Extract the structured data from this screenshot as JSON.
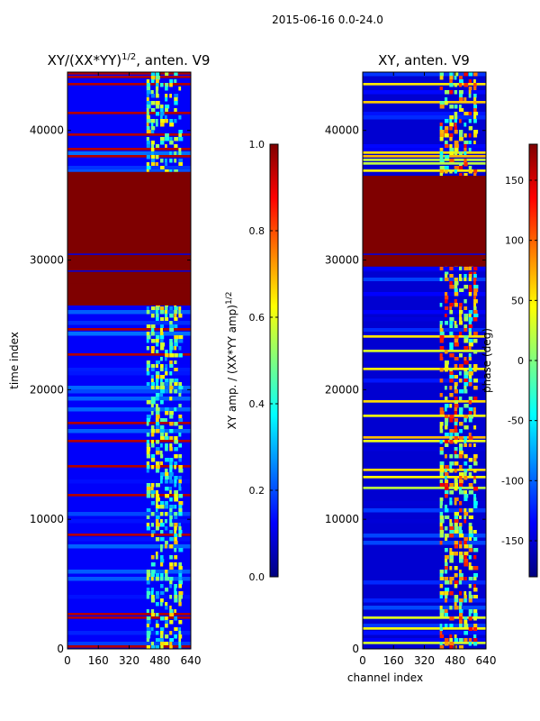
{
  "suptitle": "2015-06-16 0.0-24.0",
  "chart_data": [
    {
      "type": "heatmap",
      "title_main": "XY/(XX*YY)",
      "title_sup": "1/2",
      "title_suffix": ", anten. V9",
      "ylabel": "time index",
      "xlabel": "",
      "xlim": [
        0,
        640
      ],
      "ylim": [
        0,
        44500
      ],
      "xticks": [
        0,
        160,
        320,
        480,
        640
      ],
      "yticks": [
        0,
        10000,
        20000,
        30000,
        40000
      ],
      "colorbar": {
        "label_main": "XY amp. / (XX*YY amp)",
        "label_sup": "1/2",
        "range": [
          0.0,
          1.0
        ],
        "ticks": [
          "0.0",
          "0.2",
          "0.4",
          "0.6",
          "0.8",
          "1.0"
        ],
        "colormap": "jet"
      },
      "features": {
        "saturated_time_ranges": [
          [
            26500,
            36800
          ],
          [
            27400,
            28200
          ]
        ],
        "bright_channel_band": [
          410,
          600
        ],
        "background_level": 0.1
      }
    },
    {
      "type": "heatmap",
      "title_main": "XY, anten. V9",
      "ylabel": "",
      "xlabel": "channel index",
      "xlim": [
        0,
        640
      ],
      "ylim": [
        0,
        44500
      ],
      "xticks": [
        0,
        160,
        320,
        480,
        640
      ],
      "yticks": [
        0,
        10000,
        20000,
        30000,
        40000
      ],
      "colorbar": {
        "label_main": "phase (deg)",
        "range": [
          -180,
          180
        ],
        "ticks": [
          "-150",
          "-100",
          "-50",
          "0",
          "50",
          "100",
          "150"
        ],
        "colormap": "jet"
      },
      "features": {
        "saturated_time_ranges": [
          [
            29500,
            36500
          ]
        ],
        "bright_channel_band": [
          400,
          600
        ],
        "background_level": -150
      }
    }
  ],
  "colors": {
    "jet": [
      "#00007f",
      "#0000ff",
      "#007fff",
      "#00ffff",
      "#7fff7f",
      "#ffff00",
      "#ff7f00",
      "#ff0000",
      "#7f0000"
    ]
  }
}
